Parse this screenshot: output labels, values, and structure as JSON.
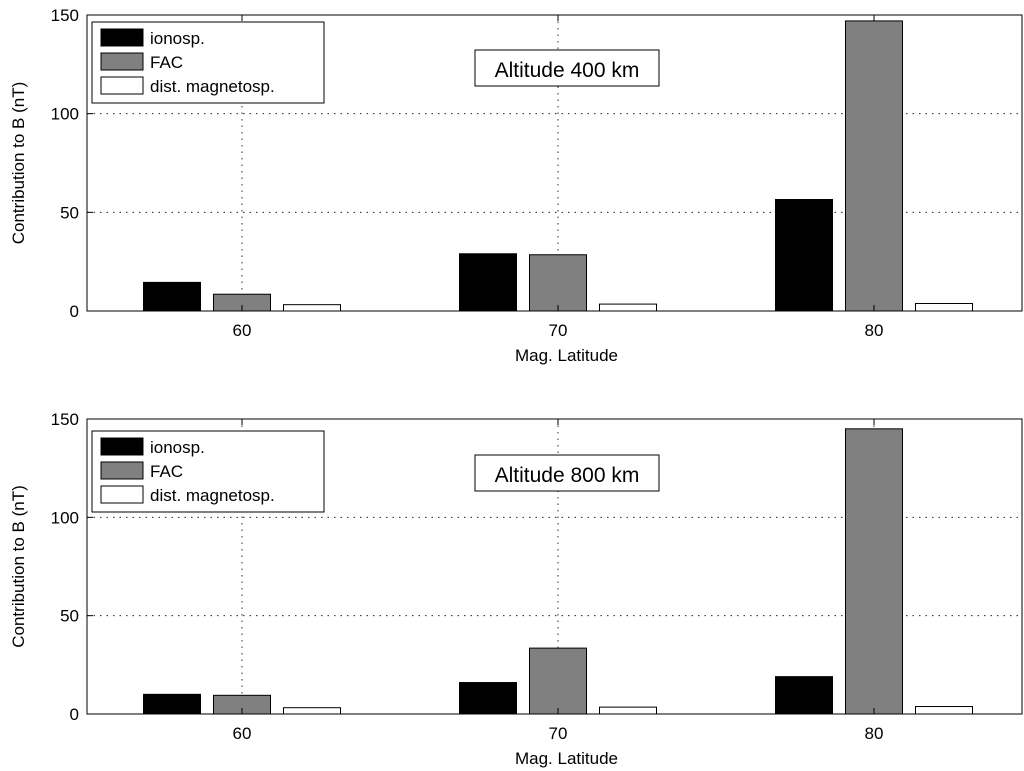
{
  "chart_data": [
    {
      "type": "bar",
      "annotation": "Altitude 400 km",
      "xlabel": "Mag. Latitude",
      "ylabel": "Contribution to B (nT)",
      "categories": [
        "60",
        "70",
        "80"
      ],
      "ylim": [
        0,
        150
      ],
      "yticks": [
        0,
        50,
        100,
        150
      ],
      "grid": true,
      "legend_position": "top-left",
      "series": [
        {
          "name": "ionosp.",
          "color": "#000000",
          "values": [
            14.5,
            29,
            56.5
          ]
        },
        {
          "name": "FAC",
          "color": "#808080",
          "values": [
            8.5,
            28.5,
            147
          ]
        },
        {
          "name": "dist. magnetosp.",
          "color": "#ffffff",
          "values": [
            3.2,
            3.5,
            3.8
          ]
        }
      ]
    },
    {
      "type": "bar",
      "annotation": "Altitude 800 km",
      "xlabel": "Mag. Latitude",
      "ylabel": "Contribution to B (nT)",
      "categories": [
        "60",
        "70",
        "80"
      ],
      "ylim": [
        0,
        150
      ],
      "yticks": [
        0,
        50,
        100,
        150
      ],
      "grid": true,
      "legend_position": "top-left",
      "series": [
        {
          "name": "ionosp.",
          "color": "#000000",
          "values": [
            10,
            16,
            19
          ]
        },
        {
          "name": "FAC",
          "color": "#808080",
          "values": [
            9.5,
            33.5,
            145
          ]
        },
        {
          "name": "dist. magnetosp.",
          "color": "#ffffff",
          "values": [
            3.2,
            3.5,
            3.8
          ]
        }
      ]
    }
  ]
}
